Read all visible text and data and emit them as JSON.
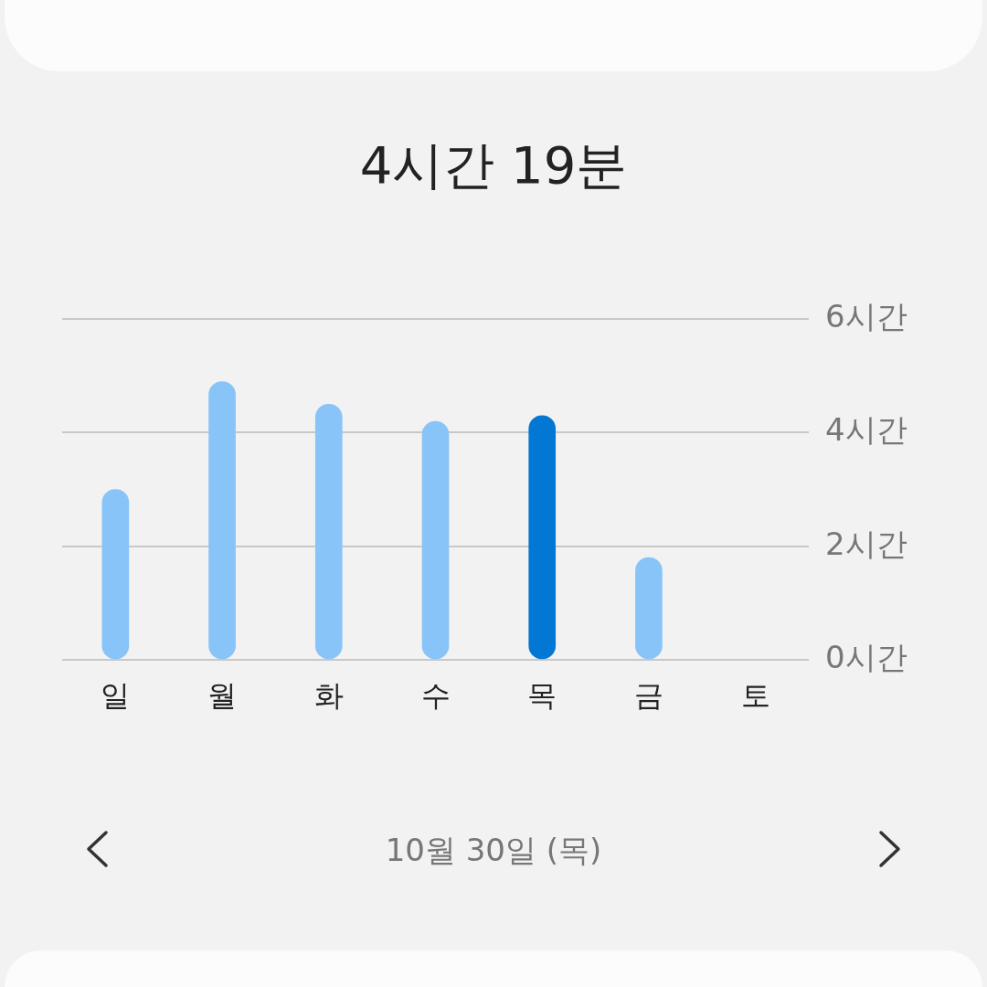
{
  "chart_data": {
    "type": "bar",
    "title": "4시간 19분",
    "categories": [
      "일",
      "월",
      "화",
      "수",
      "목",
      "금",
      "토"
    ],
    "values": [
      3.0,
      4.9,
      4.5,
      4.2,
      4.3,
      1.8,
      null
    ],
    "colors": [
      "#88c4f8",
      "#88c4f8",
      "#88c4f8",
      "#88c4f8",
      "#0277d4",
      "#88c4f8",
      "#88c4f8"
    ],
    "ylim": [
      0,
      6
    ],
    "yticks": [
      {
        "value": 0,
        "label": "0시간"
      },
      {
        "value": 2,
        "label": "2시간"
      },
      {
        "value": 4,
        "label": "4시간"
      },
      {
        "value": 6,
        "label": "6시간"
      }
    ],
    "grid": "y",
    "annotations": [
      "10월 30일 (목)"
    ]
  }
}
